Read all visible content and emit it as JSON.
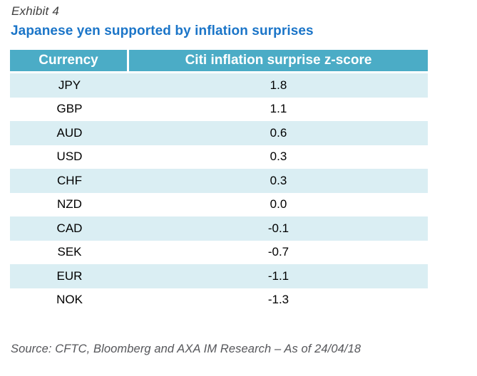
{
  "exhibit": {
    "label": "Exhibit 4"
  },
  "title": "Japanese yen supported by inflation surprises",
  "table": {
    "columns": {
      "currency": "Currency",
      "zscore": "Citi inflation surprise z-score"
    },
    "rows": [
      {
        "currency": "JPY",
        "zscore": "1.8"
      },
      {
        "currency": "GBP",
        "zscore": "1.1"
      },
      {
        "currency": "AUD",
        "zscore": "0.6"
      },
      {
        "currency": "USD",
        "zscore": "0.3"
      },
      {
        "currency": "CHF",
        "zscore": "0.3"
      },
      {
        "currency": "NZD",
        "zscore": "0.0"
      },
      {
        "currency": "CAD",
        "zscore": "-0.1"
      },
      {
        "currency": "SEK",
        "zscore": "-0.7"
      },
      {
        "currency": "EUR",
        "zscore": "-1.1"
      },
      {
        "currency": "NOK",
        "zscore": "-1.3"
      }
    ]
  },
  "source": "Source: CFTC, Bloomberg and AXA IM Research – As of 24/04/18",
  "colors": {
    "header_bg": "#4bacc6",
    "row_alt_bg": "#daeef3",
    "title_blue": "#1b75c8",
    "exhibit_gray": "#3f3f3f",
    "source_gray": "#55565a",
    "header_text": "#ffffff",
    "cell_text": "#000000"
  },
  "chart_data": {
    "type": "table",
    "title": "Japanese yen supported by inflation surprises",
    "columns": [
      "Currency",
      "Citi inflation surprise z-score"
    ],
    "categories": [
      "JPY",
      "GBP",
      "AUD",
      "USD",
      "CHF",
      "NZD",
      "CAD",
      "SEK",
      "EUR",
      "NOK"
    ],
    "values": [
      1.8,
      1.1,
      0.6,
      0.3,
      0.3,
      0.0,
      -0.1,
      -0.7,
      -1.1,
      -1.3
    ],
    "source": "Source: CFTC, Bloomberg and AXA IM Research – As of 24/04/18",
    "layout": "two-column striped table, teal header, centered values"
  }
}
